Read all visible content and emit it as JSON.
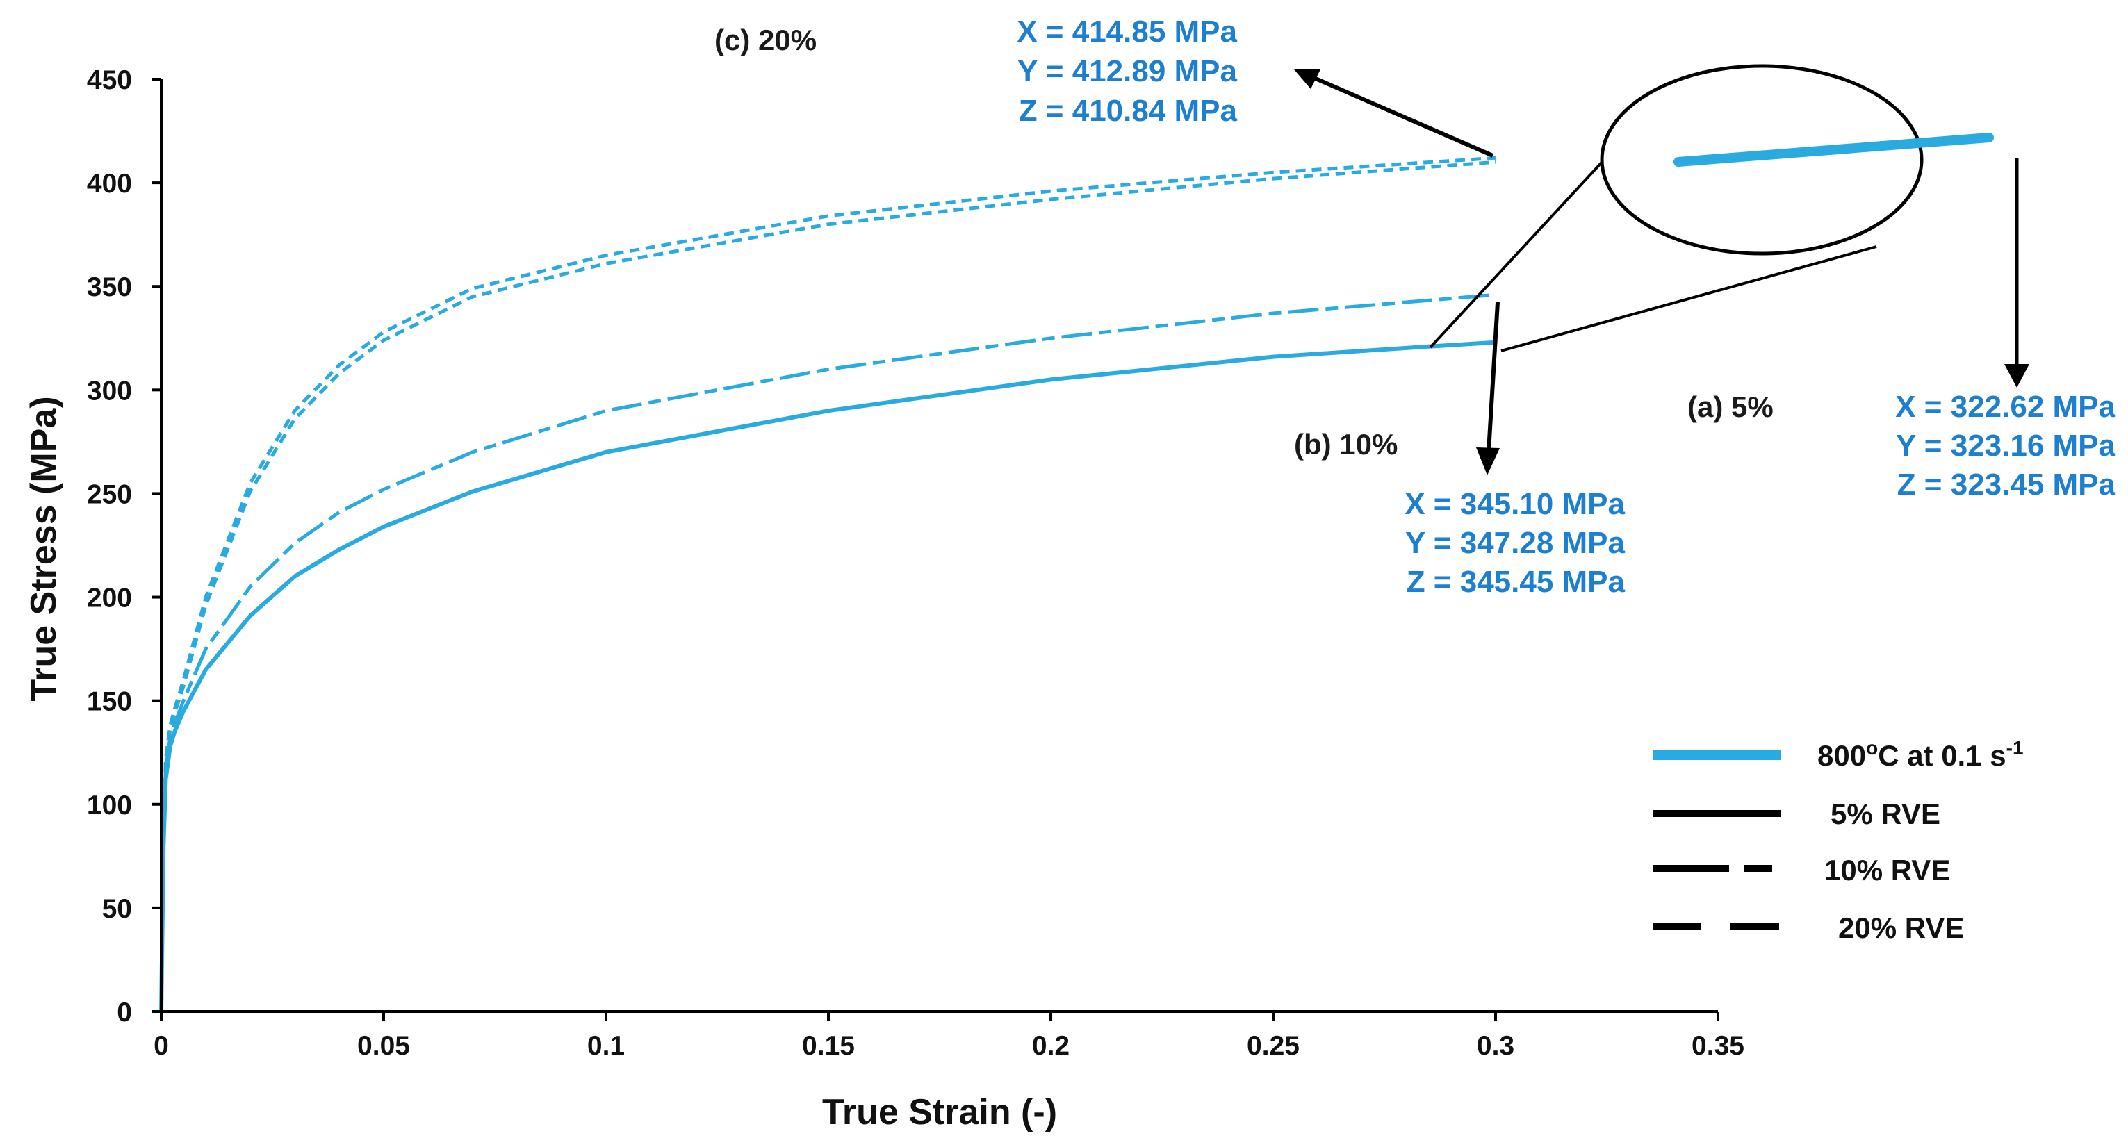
{
  "chart_data": {
    "type": "line",
    "xlabel": "True Strain (-)",
    "ylabel": "True Stress (MPa)",
    "xlim": [
      0,
      0.35
    ],
    "ylim": [
      0,
      450
    ],
    "x_ticks": [
      "0",
      "0.05",
      "0.1",
      "0.15",
      "0.2",
      "0.25",
      "0.3",
      "0.35"
    ],
    "y_ticks": [
      "0",
      "50",
      "100",
      "150",
      "200",
      "250",
      "300",
      "350",
      "400",
      "450"
    ],
    "grid": false,
    "series_color": "#29aae1",
    "series": [
      {
        "name": "5% RVE",
        "dash": "solid",
        "x": [
          0,
          0.0005,
          0.001,
          0.002,
          0.003,
          0.005,
          0.01,
          0.02,
          0.03,
          0.04,
          0.05,
          0.07,
          0.1,
          0.15,
          0.2,
          0.25,
          0.285,
          0.3
        ],
        "y": [
          0,
          80,
          112,
          128,
          135,
          145,
          165,
          191,
          210,
          223,
          234,
          251,
          270,
          290,
          305,
          316,
          321,
          323
        ]
      },
      {
        "name": "10% RVE",
        "dash": "long-short",
        "x": [
          0,
          0.0005,
          0.001,
          0.002,
          0.003,
          0.005,
          0.01,
          0.02,
          0.03,
          0.04,
          0.05,
          0.07,
          0.1,
          0.15,
          0.2,
          0.25,
          0.3
        ],
        "y": [
          0,
          85,
          118,
          132,
          139,
          150,
          175,
          205,
          226,
          241,
          252,
          270,
          290,
          310,
          325,
          337,
          346
        ]
      },
      {
        "name": "20% RVE",
        "dash": "short",
        "x": [
          0,
          0.0005,
          0.001,
          0.002,
          0.003,
          0.005,
          0.01,
          0.02,
          0.03,
          0.04,
          0.05,
          0.07,
          0.1,
          0.15,
          0.2,
          0.25,
          0.3
        ],
        "y": [
          0,
          90,
          122,
          138,
          146,
          160,
          200,
          255,
          290,
          312,
          328,
          349,
          365,
          384,
          396,
          405,
          412
        ]
      },
      {
        "name": "20% RVE (2)",
        "dash": "short",
        "x": [
          0,
          0.0005,
          0.001,
          0.002,
          0.003,
          0.005,
          0.01,
          0.02,
          0.03,
          0.04,
          0.05,
          0.07,
          0.1,
          0.15,
          0.2,
          0.25,
          0.3
        ],
        "y": [
          0,
          88,
          120,
          136,
          144,
          157,
          196,
          251,
          286,
          308,
          324,
          345,
          361,
          380,
          392,
          402,
          410
        ]
      }
    ],
    "annotations": [
      {
        "label": "(c) 20%",
        "values": [
          "X = 414.85 MPa",
          "Y = 412.89 MPa",
          "Z = 410.84 MPa"
        ]
      },
      {
        "label": "(b) 10%",
        "values": [
          "X = 345.10 MPa",
          "Y = 347.28 MPa",
          "Z = 345.45 MPa"
        ]
      },
      {
        "label": "(a) 5%",
        "values": [
          "X = 322.62 MPa",
          "Y = 323.16 MPa",
          "Z = 323.45 MPa"
        ]
      }
    ],
    "legend": {
      "position": "bottom-right",
      "items": [
        {
          "label_main": "800",
          "label_sup": "o",
          "label_mid": "C  at 0.1 s",
          "label_sup2": "-1",
          "color": "#29aae1",
          "dash": "solid"
        },
        {
          "label": "5% RVE",
          "color": "#000000",
          "dash": "solid"
        },
        {
          "label": "10% RVE",
          "color": "#000000",
          "dash": "long-short"
        },
        {
          "label": "20% RVE",
          "color": "#000000",
          "dash": "dashed"
        }
      ]
    },
    "colors": {
      "curve": "#29aae1",
      "annotation_text": "#1d7fd0",
      "axis": "#000000"
    }
  }
}
